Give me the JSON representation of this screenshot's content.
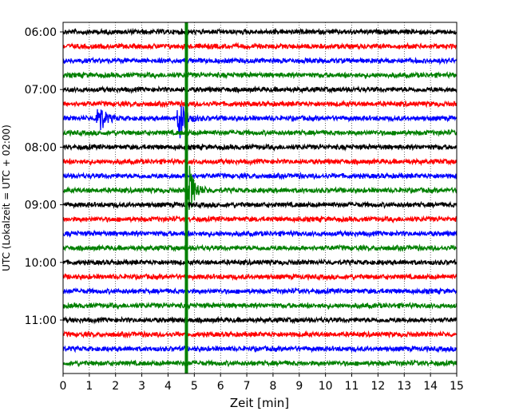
{
  "chart_data": {
    "type": "line",
    "title": "",
    "xlabel": "Zeit  [min]",
    "ylabel": "UTC (Lokalzeit = UTC + 02:00)",
    "xlim": [
      0,
      15
    ],
    "x_ticks": [
      0,
      1,
      2,
      3,
      4,
      5,
      6,
      7,
      8,
      9,
      10,
      11,
      12,
      13,
      14,
      15
    ],
    "y_tick_labels": [
      "06:00",
      "07:00",
      "08:00",
      "09:00",
      "10:00",
      "11:00"
    ],
    "trace_interval_minutes": 15,
    "trace_count": 24,
    "first_trace_start": "06:00",
    "trace_colors": [
      "#000000",
      "#ff0000",
      "#0000ff",
      "#008000"
    ],
    "grid": "vertical dotted",
    "events": [
      {
        "trace_start": "07:30",
        "minute": 1.3,
        "color": "#0000ff"
      },
      {
        "trace_start": "07:30",
        "minute": 4.4,
        "color": "#0000ff"
      },
      {
        "trace_start": "08:45",
        "minute": 4.8,
        "color": "#008000"
      },
      {
        "trace_start": "all",
        "minute": 4.7,
        "color": "#008000"
      }
    ]
  }
}
